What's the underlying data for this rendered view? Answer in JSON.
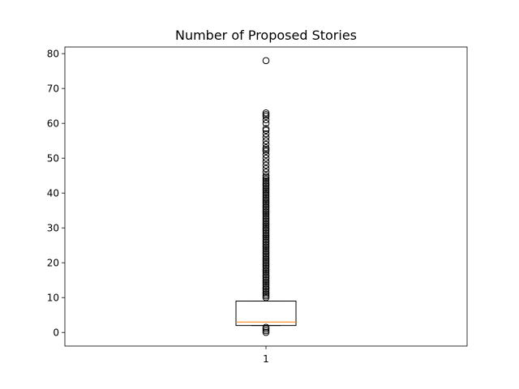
{
  "chart_data": {
    "type": "boxplot",
    "title": "Number of Proposed Stories",
    "xlabel": "",
    "ylabel": "",
    "categories": [
      "1"
    ],
    "ylim": [
      -3.9,
      81.9
    ],
    "yticks": [
      0,
      10,
      20,
      30,
      40,
      50,
      60,
      70,
      80
    ],
    "grid": false,
    "boxes": [
      {
        "category": "1",
        "whislo": 2,
        "q1": 2,
        "med": 3,
        "q3": 9,
        "whishi": 9,
        "fliers": [
          0,
          0.5,
          1,
          1.5,
          10,
          10.5,
          11,
          11.5,
          12,
          12.5,
          13,
          13.5,
          14,
          14.5,
          15,
          15.5,
          16,
          16.5,
          17,
          17.5,
          18,
          18.5,
          19,
          19.5,
          20,
          20.5,
          21,
          21.5,
          22,
          22.5,
          23,
          23.5,
          24,
          24.5,
          25,
          25.5,
          26,
          26.5,
          27,
          27.5,
          28,
          28.5,
          29,
          29.5,
          30,
          30.5,
          31,
          31.5,
          32,
          32.5,
          33,
          33.5,
          34,
          34.5,
          35,
          35.5,
          36,
          36.5,
          37,
          37.5,
          38,
          38.5,
          39,
          39.5,
          40,
          40.5,
          41,
          41.5,
          42,
          42.5,
          43,
          43.5,
          44,
          44.5,
          45,
          46,
          47,
          48,
          49,
          50,
          51,
          52,
          52.5,
          53,
          54,
          55,
          56,
          57,
          58,
          58.5,
          60,
          61,
          62,
          62.5,
          63,
          78
        ]
      }
    ]
  }
}
